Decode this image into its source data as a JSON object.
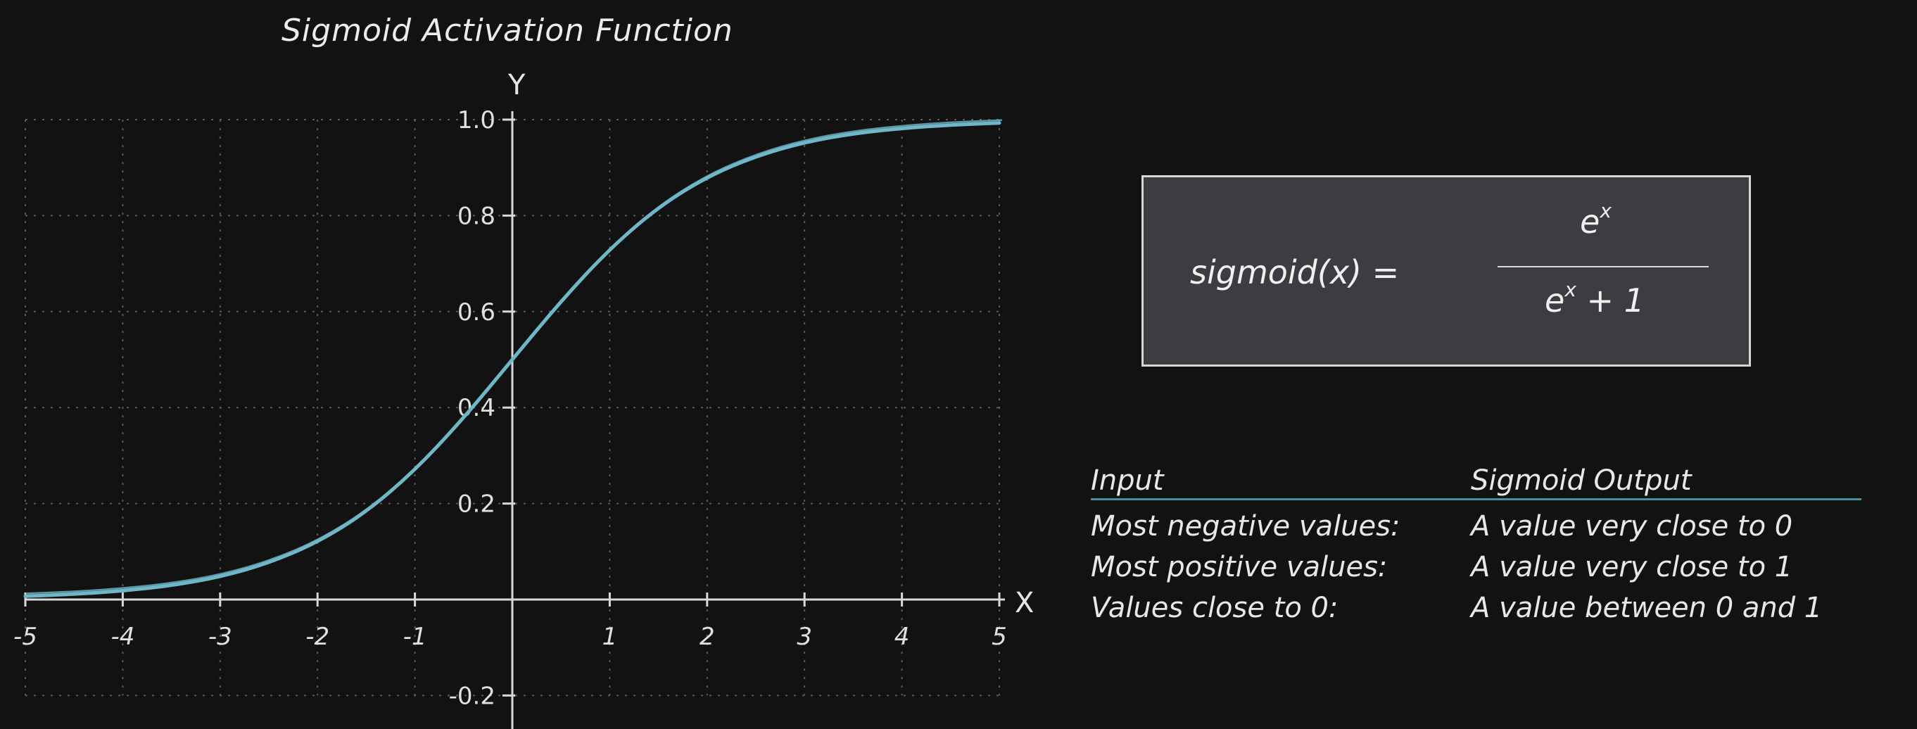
{
  "chart_data": {
    "type": "line",
    "title": "Sigmoid Activation Function",
    "xlabel": "X",
    "ylabel": "Y",
    "xlim": [
      -5,
      5
    ],
    "ylim": [
      -0.2,
      1.0
    ],
    "x_ticks": [
      "-5",
      "-4",
      "-3",
      "-2",
      "-1",
      "1",
      "2",
      "3",
      "4",
      "5"
    ],
    "y_ticks": [
      "1.0",
      "0.8",
      "0.6",
      "0.4",
      "0.2",
      "-0.2"
    ],
    "grid": true,
    "series": [
      {
        "x": [
          -5,
          -4.5,
          -4,
          -3.5,
          -3,
          -2.5,
          -2,
          -1.5,
          -1,
          -0.5,
          0,
          0.5,
          1,
          1.5,
          2,
          2.5,
          3,
          3.5,
          4,
          4.5,
          5
        ],
        "values": [
          0.007,
          0.011,
          0.018,
          0.029,
          0.047,
          0.076,
          0.119,
          0.182,
          0.269,
          0.378,
          0.5,
          0.622,
          0.731,
          0.818,
          0.881,
          0.924,
          0.953,
          0.971,
          0.982,
          0.989,
          0.993
        ],
        "color": "#6fb7c8"
      }
    ]
  },
  "formula": {
    "lhs": "sigmoid(x) =",
    "numerator_base": "e",
    "numerator_exp": "x",
    "denominator_base": "e",
    "denominator_exp": "x",
    "denominator_rest": "+ 1"
  },
  "table": {
    "headers": [
      "Input",
      "Sigmoid Output"
    ],
    "rows": [
      [
        "Most negative values:",
        "A value very close to 0"
      ],
      [
        "Most positive values:",
        "A value very close to 1"
      ],
      [
        "Values close to 0:",
        "A value between 0 and 1"
      ]
    ]
  },
  "colors": {
    "background": "#121212",
    "curve": "#6fb7c8",
    "axis": "#d8d8d8",
    "grid": "#5a5a5a",
    "table_rule": "#4a8f9e"
  }
}
